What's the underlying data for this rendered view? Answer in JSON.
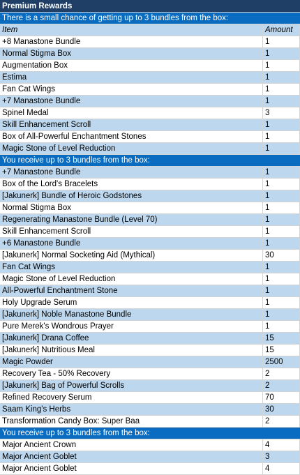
{
  "title": "Premium Rewards",
  "columns": [
    "Item",
    "Amount"
  ],
  "sections": [
    {
      "heading": "There is a small chance of getting up to 3 bundles from the box:",
      "rows": [
        [
          "+8 Manastone Bundle",
          1
        ],
        [
          "Normal Stigma Box",
          1
        ],
        [
          "Augmentation Box",
          1
        ],
        [
          "Estima",
          1
        ],
        [
          "Fan Cat Wings",
          1
        ],
        [
          "+7 Manastone Bundle",
          1
        ],
        [
          "Spinel Medal",
          3
        ],
        [
          "Skill Enhancement Scroll",
          1
        ],
        [
          "Box of All-Powerful Enchantment Stones",
          1
        ],
        [
          "Magic Stone of Level Reduction",
          1
        ]
      ]
    },
    {
      "heading": "You receive up to 3 bundles from the box:",
      "rows": [
        [
          "+7 Manastone Bundle",
          1
        ],
        [
          "Box of the Lord's Bracelets",
          1
        ],
        [
          "[Jakunerk] Bundle of Heroic Godstones",
          1
        ],
        [
          "Normal Stigma Box",
          1
        ],
        [
          "Regenerating Manastone Bundle (Level 70)",
          1
        ],
        [
          "Skill Enhancement Scroll",
          1
        ],
        [
          "+6 Manastone Bundle",
          1
        ],
        [
          "[Jakunerk] Normal Socketing Aid (Mythical)",
          30
        ],
        [
          "Fan Cat Wings",
          1
        ],
        [
          "Magic Stone of Level Reduction",
          1
        ],
        [
          "All-Powerful Enchantment Stone",
          1
        ],
        [
          "Holy Upgrade Serum",
          1
        ],
        [
          "[Jakunerk] Noble Manastone Bundle",
          1
        ],
        [
          "Pure Merek's Wondrous Prayer",
          1
        ],
        [
          "[Jakunerk] Drana Coffee",
          15
        ],
        [
          "[Jakunerk] Nutritious Meal",
          15
        ],
        [
          "Magic Powder",
          2500
        ],
        [
          "Recovery Tea - 50% Recovery",
          2
        ],
        [
          "[Jakunerk] Bag of Powerful Scrolls",
          2
        ],
        [
          "Refined Recovery Serum",
          70
        ],
        [
          "Saam King's Herbs",
          30
        ],
        [
          "Transformation Candy Box: Super Baa",
          2
        ]
      ]
    },
    {
      "heading": "You receive up to 3 bundles from the box:",
      "rows": [
        [
          "Major Ancient Crown",
          4
        ],
        [
          "Major Ancient Goblet",
          3
        ],
        [
          "Major Ancient Goblet",
          4
        ]
      ]
    }
  ]
}
